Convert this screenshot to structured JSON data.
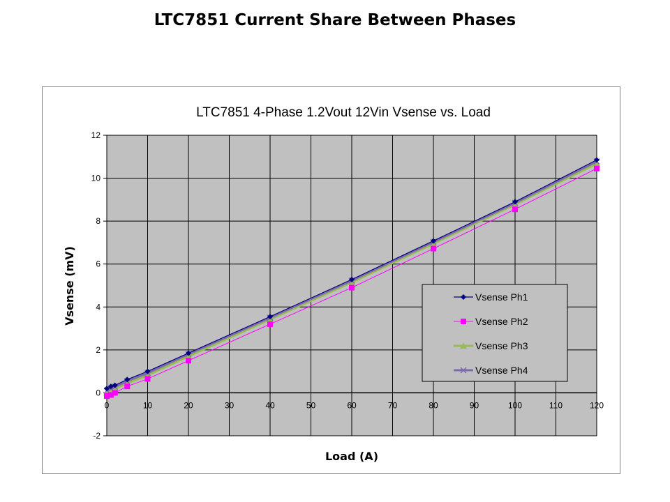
{
  "slide": {
    "title": "LTC7851 Current Share Between Phases"
  },
  "colors": {
    "plot_bg": "#c0c0c0",
    "grid": "#000000",
    "ph1": "#000080",
    "ph2": "#ff00ff",
    "ph3": "#99bb55",
    "ph4": "#7f6aab"
  },
  "chart_data": {
    "type": "line",
    "title": "LTC7851  4-Phase 1.2Vout  12Vin  Vsense vs. Load",
    "xlabel": "Load (A)",
    "ylabel": "Vsense (mV)",
    "xlim": [
      0,
      120
    ],
    "ylim": [
      -2,
      12
    ],
    "x_ticks": [
      0,
      10,
      20,
      30,
      40,
      50,
      60,
      70,
      80,
      90,
      100,
      110,
      120
    ],
    "y_ticks": [
      -2,
      0,
      2,
      4,
      6,
      8,
      10,
      12
    ],
    "grid": true,
    "legend_position": "lower right (inside plot)",
    "x": [
      0,
      1,
      2,
      5,
      10,
      20,
      40,
      60,
      80,
      100,
      120
    ],
    "series": [
      {
        "name": "Vsense Ph1",
        "marker": "diamond",
        "color": "#000080",
        "values": [
          0.2,
          0.3,
          0.35,
          0.62,
          1.0,
          1.85,
          3.55,
          5.28,
          7.08,
          8.9,
          10.85
        ]
      },
      {
        "name": "Vsense Ph2",
        "marker": "square",
        "color": "#ff00ff",
        "values": [
          -0.15,
          -0.1,
          0.0,
          0.3,
          0.65,
          1.5,
          3.2,
          4.9,
          6.72,
          8.55,
          10.45
        ]
      },
      {
        "name": "Vsense Ph3",
        "marker": "triangle",
        "color": "#99bb55",
        "values": [
          0.0,
          0.1,
          0.18,
          0.45,
          0.82,
          1.7,
          3.42,
          5.15,
          6.95,
          8.78,
          10.68
        ]
      },
      {
        "name": "Vsense Ph4",
        "marker": "x",
        "color": "#7f6aab",
        "values": [
          0.1,
          0.2,
          0.28,
          0.55,
          0.92,
          1.8,
          3.5,
          5.23,
          7.03,
          8.85,
          10.78
        ]
      }
    ]
  }
}
